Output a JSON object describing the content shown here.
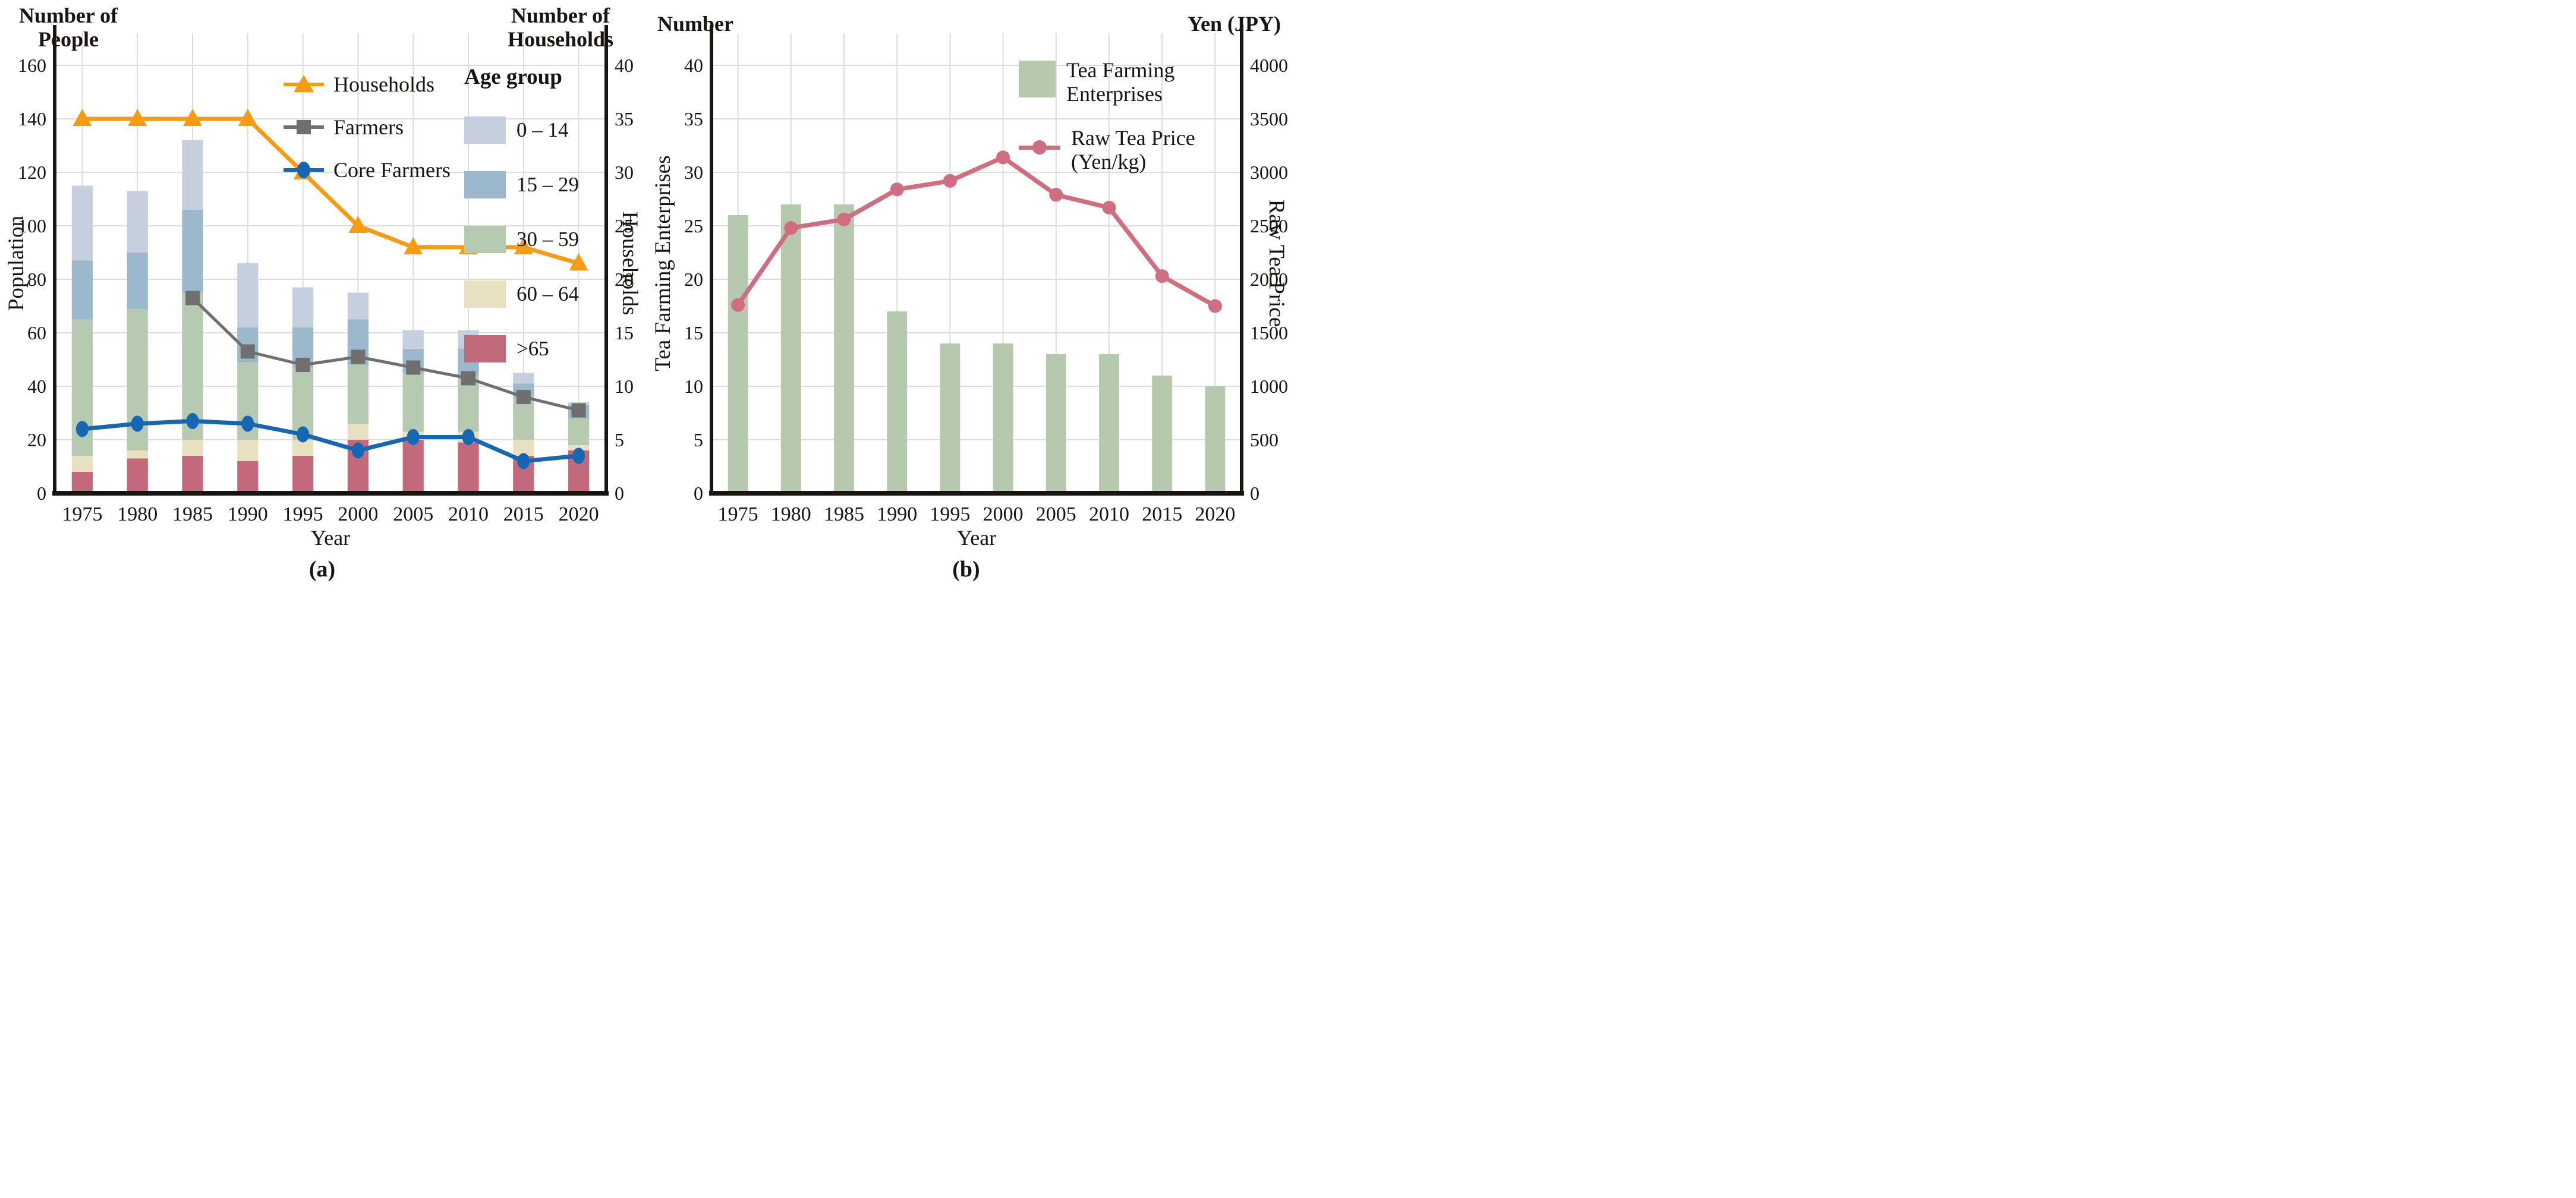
{
  "figure": {
    "background": "#ffffff"
  },
  "panel_a": {
    "corner_left": [
      "Number of",
      "People"
    ],
    "corner_right": [
      "Number of",
      "Households"
    ],
    "ylabel_left": "Population",
    "ylabel_right": "Households",
    "xlabel": "Year",
    "caption": "(a)",
    "line_legend": [
      {
        "label": "Households",
        "marker": "triangle",
        "color": "#F59C14"
      },
      {
        "label": "Farmers",
        "marker": "square",
        "color": "#6F6F6F"
      },
      {
        "label": "Core Farmers",
        "marker": "ellipse",
        "color": "#1567B3"
      }
    ],
    "age_legend_title": "Age group",
    "age_legend": [
      {
        "label": "0 – 14",
        "color": "#c6cfdd"
      },
      {
        "label": "15 – 29",
        "color": "#9bb8cd"
      },
      {
        "label": "30 – 59",
        "color": "#b6c9b1"
      },
      {
        "label": "60 – 64",
        "color": "#e7e1c1"
      },
      {
        "label": ">65",
        "color": "#c2697b"
      }
    ]
  },
  "panel_b": {
    "corner_left": "Number",
    "corner_right": "Yen (JPY)",
    "ylabel_left": "Tea Farming Enterprises",
    "ylabel_right": "Raw Tea Price",
    "xlabel": "Year",
    "caption": "(b)",
    "legend": [
      {
        "lines": [
          "Tea Farming",
          "Enterprises"
        ],
        "marker": "swatch",
        "color": "#b6c9ae"
      },
      {
        "lines": [
          "Raw Tea Price",
          "(Yen/kg)"
        ],
        "marker": "line-dot",
        "color": "#CF6E81"
      }
    ]
  },
  "chart_data": [
    {
      "id": "a",
      "type": "bar",
      "subtype": "stacked-bars-with-lines",
      "title": "",
      "xlabel": "Year",
      "ylabel_left": "Population (Number of People)",
      "ylabel_right": "Households (Number of Households)",
      "categories": [
        "1975",
        "1980",
        "1985",
        "1990",
        "1995",
        "2000",
        "2005",
        "2010",
        "2015",
        "2020"
      ],
      "stacks": [
        {
          "name": ">65",
          "color": "#c2697b",
          "values": [
            8,
            13,
            14,
            12,
            14,
            20,
            20,
            19,
            14,
            16
          ]
        },
        {
          "name": "60 – 64",
          "color": "#e7e1c1",
          "values": [
            6,
            3,
            6,
            8,
            6,
            6,
            3,
            4,
            6,
            2
          ]
        },
        {
          "name": "30 – 59",
          "color": "#b6c9b1",
          "values": [
            51,
            53,
            55,
            29,
            27,
            22,
            22,
            21,
            16,
            10
          ]
        },
        {
          "name": "15 – 29",
          "color": "#9bb8cd",
          "values": [
            22,
            21,
            31,
            13,
            15,
            17,
            9,
            10,
            5,
            5
          ]
        },
        {
          "name": "0 – 14",
          "color": "#c6cfdd",
          "values": [
            28,
            23,
            26,
            24,
            15,
            10,
            7,
            7,
            4,
            1
          ]
        }
      ],
      "stack_totals": [
        115,
        113,
        132,
        86,
        77,
        75,
        61,
        61,
        45,
        34
      ],
      "lines": [
        {
          "name": "Households",
          "axis": "right",
          "color": "#F59C14",
          "marker": "triangle",
          "values": [
            35,
            35,
            35,
            35,
            30,
            25,
            23,
            23,
            23,
            21.5
          ]
        },
        {
          "name": "Farmers",
          "axis": "left",
          "color": "#6F6F6F",
          "marker": "square",
          "values": [
            null,
            null,
            73,
            53,
            48,
            51,
            47,
            43,
            36,
            31
          ]
        },
        {
          "name": "Core Farmers",
          "axis": "left",
          "color": "#1567B3",
          "marker": "ellipse",
          "values": [
            24,
            26,
            27,
            26,
            22,
            16,
            21,
            21,
            12,
            14
          ]
        }
      ],
      "left_axis": {
        "ticks": [
          0,
          20,
          40,
          60,
          80,
          100,
          120,
          140,
          160
        ],
        "max": 172
      },
      "right_axis": {
        "ticks": [
          0,
          5,
          10,
          15,
          20,
          25,
          30,
          35,
          40
        ],
        "max": 43
      },
      "grid": true,
      "legend_position": "top-inside"
    },
    {
      "id": "b",
      "type": "bar",
      "subtype": "bars-with-line",
      "title": "",
      "xlabel": "Year",
      "ylabel_left": "Tea Farming Enterprises (Number)",
      "ylabel_right": "Raw Tea Price (Yen JPY)",
      "categories": [
        "1975",
        "1980",
        "1985",
        "1990",
        "1995",
        "2000",
        "2005",
        "2010",
        "2015",
        "2020"
      ],
      "bars": {
        "name": "Tea Farming Enterprises",
        "color": "#b6c9ae",
        "values": [
          26,
          27,
          27,
          17,
          14,
          14,
          13,
          13,
          11,
          10
        ]
      },
      "lines": [
        {
          "name": "Raw Tea Price (Yen/kg)",
          "axis": "right",
          "color": "#CF6E81",
          "marker": "circle",
          "values": [
            1760,
            2480,
            2560,
            2840,
            2920,
            3140,
            2790,
            2670,
            2030,
            1750
          ]
        }
      ],
      "left_axis": {
        "ticks": [
          0,
          5,
          10,
          15,
          20,
          25,
          30,
          35,
          40
        ],
        "max": 43
      },
      "right_axis": {
        "ticks": [
          0,
          500,
          1000,
          1500,
          2000,
          2500,
          3000,
          3500,
          4000
        ],
        "max": 4300
      },
      "grid": true,
      "legend_position": "top-inside"
    }
  ]
}
